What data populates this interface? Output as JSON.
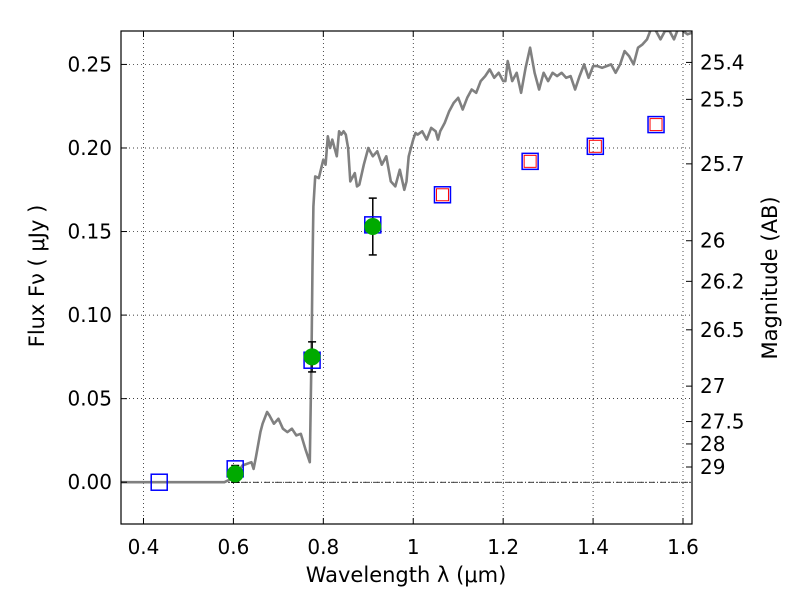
{
  "chart_data": {
    "type": "scatter",
    "xlabel": "Wavelength  λ (μm)",
    "ylabel": "Flux  Fν  ( μJy )",
    "ylabel_right": "Magnitude (AB)",
    "xlim": [
      0.35,
      1.62
    ],
    "ylim": [
      -0.025,
      0.27
    ],
    "grid": true,
    "x_ticks": [
      0.4,
      0.6,
      0.8,
      1.0,
      1.2,
      1.4,
      1.6
    ],
    "x_tick_labels": [
      "0.4",
      "0.6",
      "0.8",
      "1",
      "1.2",
      "1.4",
      "1.6"
    ],
    "y_ticks": [
      0.0,
      0.05,
      0.1,
      0.15,
      0.2,
      0.25
    ],
    "y_tick_labels": [
      "0.00",
      "0.05",
      "0.10",
      "0.15",
      "0.20",
      "0.25"
    ],
    "right_ticks": [
      {
        "label": "25.4",
        "flux": 0.2512
      },
      {
        "label": "25.5",
        "flux": 0.2291
      },
      {
        "label": "25.7",
        "flux": 0.1905
      },
      {
        "label": "26",
        "flux": 0.1445
      },
      {
        "label": "26.2",
        "flux": 0.1202
      },
      {
        "label": "26.5",
        "flux": 0.0912
      },
      {
        "label": "27",
        "flux": 0.0575
      },
      {
        "label": "27.5",
        "flux": 0.0363
      },
      {
        "label": "28",
        "flux": 0.0229
      },
      {
        "label": "29",
        "flux": 0.0091
      }
    ],
    "series": [
      {
        "kind": "spectrum",
        "color": "#808080",
        "x": [
          0.35,
          0.58,
          0.595,
          0.61,
          0.62,
          0.64,
          0.645,
          0.65,
          0.66,
          0.665,
          0.675,
          0.68,
          0.69,
          0.7,
          0.71,
          0.72,
          0.73,
          0.74,
          0.75,
          0.76,
          0.77,
          0.774,
          0.776,
          0.778,
          0.782,
          0.79,
          0.8,
          0.805,
          0.81,
          0.815,
          0.82,
          0.83,
          0.835,
          0.84,
          0.845,
          0.85,
          0.855,
          0.86,
          0.87,
          0.875,
          0.88,
          0.89,
          0.9,
          0.91,
          0.92,
          0.93,
          0.94,
          0.95,
          0.96,
          0.97,
          0.98,
          0.985,
          0.99,
          1.0,
          1.005,
          1.01,
          1.02,
          1.03,
          1.04,
          1.05,
          1.055,
          1.06,
          1.07,
          1.08,
          1.09,
          1.1,
          1.11,
          1.12,
          1.13,
          1.14,
          1.15,
          1.16,
          1.17,
          1.18,
          1.19,
          1.2,
          1.205,
          1.21,
          1.22,
          1.23,
          1.24,
          1.25,
          1.26,
          1.27,
          1.28,
          1.29,
          1.3,
          1.31,
          1.32,
          1.33,
          1.34,
          1.35,
          1.36,
          1.37,
          1.38,
          1.39,
          1.4,
          1.41,
          1.42,
          1.43,
          1.44,
          1.45,
          1.46,
          1.47,
          1.48,
          1.49,
          1.5,
          1.51,
          1.52,
          1.53,
          1.54,
          1.55,
          1.56,
          1.57,
          1.58,
          1.59,
          1.6,
          1.61,
          1.62
        ],
        "y": [
          0.0,
          0.0,
          0.002,
          0.006,
          0.01,
          0.012,
          0.008,
          0.015,
          0.03,
          0.035,
          0.042,
          0.04,
          0.035,
          0.038,
          0.032,
          0.03,
          0.032,
          0.028,
          0.029,
          0.02,
          0.012,
          0.08,
          0.13,
          0.165,
          0.183,
          0.182,
          0.193,
          0.19,
          0.207,
          0.2,
          0.205,
          0.195,
          0.21,
          0.208,
          0.21,
          0.208,
          0.2,
          0.18,
          0.185,
          0.177,
          0.178,
          0.19,
          0.2,
          0.195,
          0.198,
          0.19,
          0.195,
          0.18,
          0.177,
          0.187,
          0.175,
          0.18,
          0.195,
          0.205,
          0.209,
          0.208,
          0.21,
          0.205,
          0.212,
          0.21,
          0.205,
          0.21,
          0.215,
          0.222,
          0.227,
          0.23,
          0.223,
          0.23,
          0.235,
          0.233,
          0.24,
          0.243,
          0.247,
          0.242,
          0.245,
          0.24,
          0.24,
          0.252,
          0.24,
          0.245,
          0.233,
          0.248,
          0.26,
          0.245,
          0.235,
          0.245,
          0.24,
          0.245,
          0.243,
          0.245,
          0.242,
          0.243,
          0.235,
          0.243,
          0.25,
          0.242,
          0.249,
          0.249,
          0.248,
          0.249,
          0.25,
          0.245,
          0.25,
          0.258,
          0.255,
          0.25,
          0.26,
          0.262,
          0.265,
          0.272,
          0.27,
          0.265,
          0.27,
          0.27,
          0.265,
          0.272,
          0.27,
          0.268,
          0.269
        ]
      },
      {
        "kind": "model_photometry",
        "outer_color": "#0000ff",
        "inner_color": "#ff0000",
        "x": [
          0.435,
          0.604,
          0.775,
          0.91,
          1.065,
          1.26,
          1.405,
          1.54
        ],
        "y": [
          0.0,
          0.008,
          0.073,
          0.154,
          0.172,
          0.192,
          0.201,
          0.214
        ],
        "inner_shown": [
          false,
          false,
          false,
          false,
          true,
          true,
          true,
          true
        ]
      },
      {
        "kind": "observed",
        "color": "#00aa00",
        "x": [
          0.604,
          0.775,
          0.91
        ],
        "y": [
          0.005,
          0.075,
          0.153
        ],
        "yerr": [
          0.005,
          0.009,
          0.017
        ]
      }
    ]
  }
}
